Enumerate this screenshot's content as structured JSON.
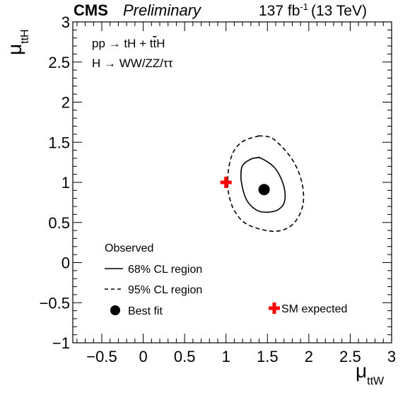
{
  "header": {
    "experiment": "CMS",
    "status": "Preliminary",
    "lumi_value": "137 fb",
    "lumi_exp": "-1",
    "energy": "(13 TeV)"
  },
  "axes": {
    "x_main": "μ",
    "x_sub": "ttW",
    "y_main": "μ",
    "y_sub": "ttH"
  },
  "process": {
    "line1_pre": "pp → tH + t",
    "line1_bar": "t",
    "line1_post": "H",
    "line2": "H → WW/ZZ/ττ"
  },
  "legend": {
    "header": "Observed",
    "contour68": "68% CL region",
    "contour95": "95% CL region",
    "bestfit": "Best fit",
    "sm": "SM expected"
  },
  "colors": {
    "sm_marker": "#ff0000",
    "lines": "#000000"
  },
  "chart_data": {
    "type": "scatter",
    "xlabel": "μ_ttW",
    "ylabel": "μ_ttH",
    "xlim": [
      -0.85,
      3
    ],
    "ylim": [
      -1,
      3
    ],
    "xticks": [
      -0.5,
      0,
      0.5,
      1,
      1.5,
      2,
      2.5,
      3
    ],
    "yticks": [
      -1,
      -0.5,
      0,
      0.5,
      1,
      1.5,
      2,
      2.5,
      3
    ],
    "xtick_labels": [
      "−0.5",
      "0",
      "0.5",
      "1",
      "1.5",
      "2",
      "2.5",
      "3"
    ],
    "ytick_labels": [
      "−1",
      "−0.5",
      "0",
      "0.5",
      "1",
      "1.5",
      "2",
      "2.5",
      "3"
    ],
    "grid": false,
    "best_fit": {
      "x": 1.46,
      "y": 0.91
    },
    "sm_expected": {
      "x": 1.0,
      "y": 1.0
    },
    "series": [
      {
        "name": "68% CL region",
        "style": "solid",
        "x": [
          1.4,
          1.3,
          1.2,
          1.18,
          1.2,
          1.24,
          1.3,
          1.4,
          1.53,
          1.63,
          1.7,
          1.71,
          1.66,
          1.58,
          1.48,
          1.4
        ],
        "y": [
          1.31,
          1.29,
          1.21,
          1.07,
          0.93,
          0.8,
          0.71,
          0.64,
          0.63,
          0.66,
          0.74,
          0.89,
          1.06,
          1.19,
          1.27,
          1.31
        ]
      },
      {
        "name": "95% CL region",
        "style": "dashed",
        "x": [
          1.4,
          1.22,
          1.1,
          1.04,
          1.02,
          1.04,
          1.1,
          1.22,
          1.4,
          1.6,
          1.76,
          1.87,
          1.93,
          1.93,
          1.88,
          1.79,
          1.66,
          1.54,
          1.4
        ],
        "y": [
          1.58,
          1.52,
          1.4,
          1.22,
          1.0,
          0.82,
          0.65,
          0.5,
          0.42,
          0.39,
          0.44,
          0.56,
          0.73,
          0.92,
          1.12,
          1.3,
          1.46,
          1.56,
          1.58
        ]
      }
    ]
  }
}
